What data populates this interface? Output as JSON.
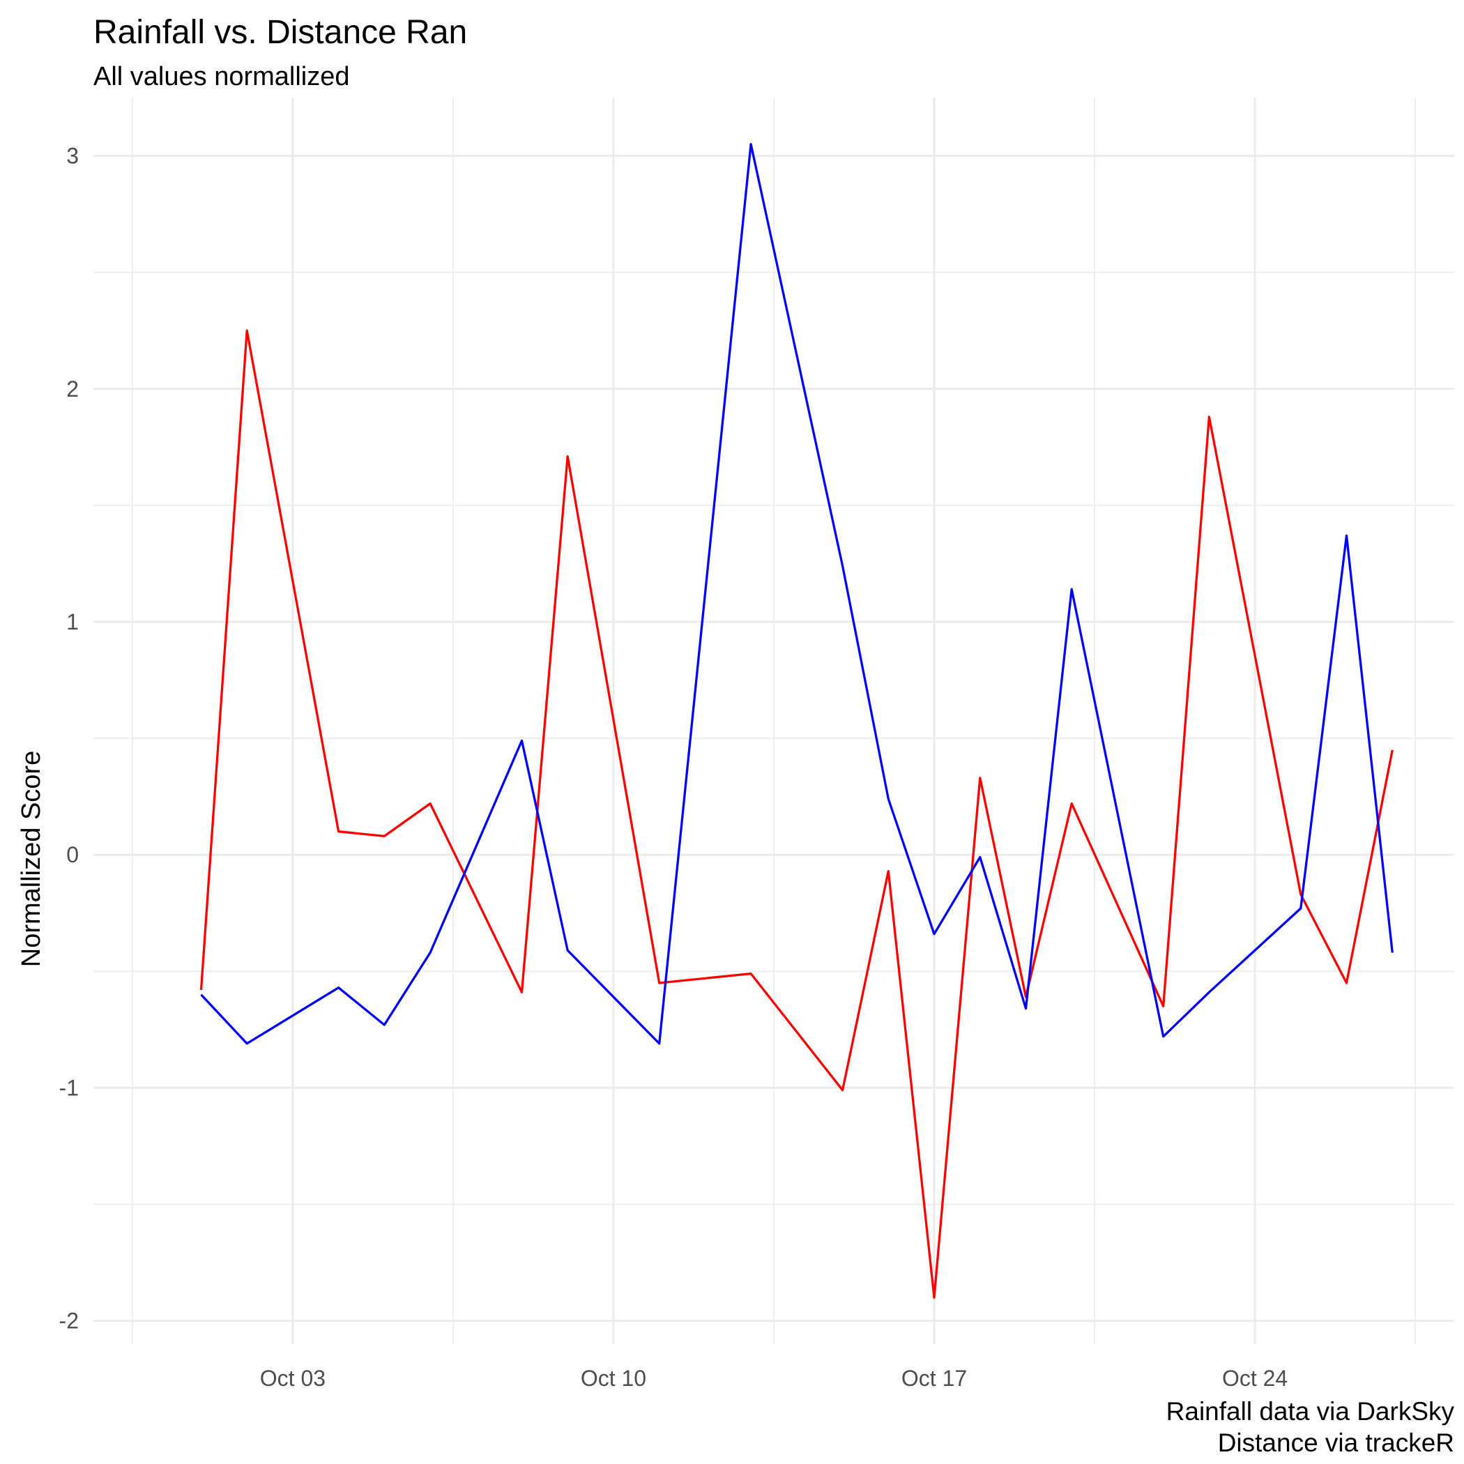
{
  "chart_data": {
    "type": "line",
    "title": "Rainfall vs. Distance Ran",
    "subtitle": "All values normallized",
    "xlabel": "",
    "ylabel": "Normallized Score",
    "caption": [
      "Rainfall data via DarkSky",
      "Distance via trackeR"
    ],
    "grid": true,
    "x_tick_labels": [
      "Oct 03",
      "Oct 10",
      "Oct 17",
      "Oct 24"
    ],
    "y_tick_labels": [
      "-2",
      "-1",
      "0",
      "1",
      "2",
      "3"
    ],
    "ylim": [
      -2.1,
      3.25
    ],
    "xlim": [
      "Sep 30",
      "Oct 27"
    ],
    "x": [
      "Oct 01",
      "Oct 02",
      "Oct 04",
      "Oct 05",
      "Oct 06",
      "Oct 08",
      "Oct 09",
      "Oct 11",
      "Oct 13",
      "Oct 15",
      "Oct 16",
      "Oct 17",
      "Oct 18",
      "Oct 19",
      "Oct 20",
      "Oct 22",
      "Oct 23",
      "Oct 25",
      "Oct 26",
      "Oct 27"
    ],
    "series": [
      {
        "color": "#ff0000",
        "values": [
          -0.58,
          2.25,
          0.1,
          0.08,
          0.22,
          -0.59,
          1.71,
          -0.55,
          -0.51,
          -1.01,
          -0.07,
          -1.9,
          0.33,
          -0.61,
          0.22,
          -0.65,
          1.88,
          -0.17,
          -0.55,
          0.45
        ]
      },
      {
        "color": "#0000ff",
        "values": [
          -0.6,
          -0.81,
          -0.57,
          -0.73,
          -0.42,
          0.49,
          -0.41,
          -0.81,
          3.05,
          1.24,
          0.24,
          -0.34,
          -0.01,
          -0.66,
          1.14,
          -0.78,
          -0.59,
          -0.23,
          1.37,
          -0.42
        ]
      }
    ]
  }
}
